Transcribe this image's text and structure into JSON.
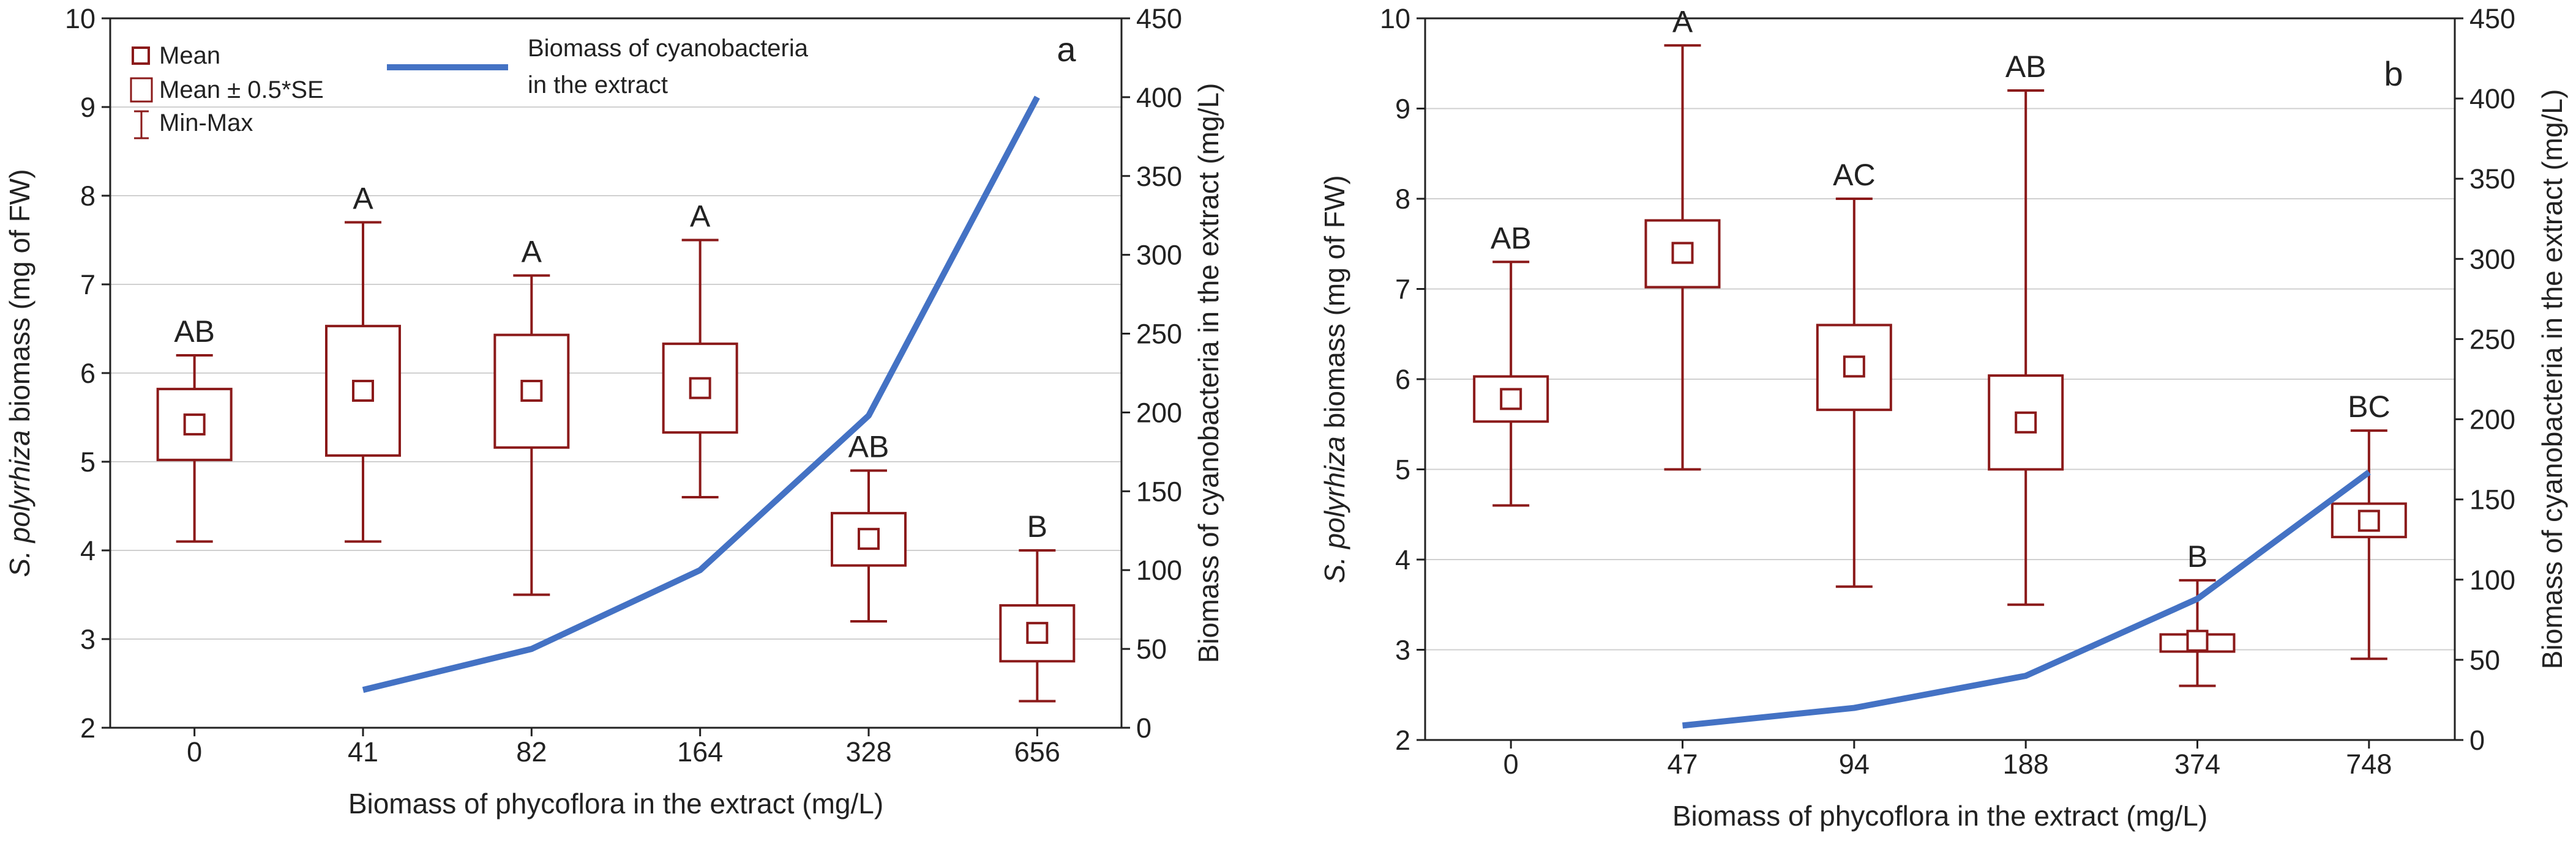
{
  "chart_data": [
    {
      "type": "boxplot",
      "panel_label": "a",
      "categories": [
        "0",
        "41",
        "82",
        "164",
        "328",
        "656"
      ],
      "xlabel": "Biomass of phycoflora in the extract (mg/L)",
      "ylabel_italic": "S. polyrhiza",
      "ylabel_rest": " biomass (mg of FW)",
      "y2label": "Biomass of cyanobacteria in the extract (mg/L)",
      "ylim": [
        2,
        10
      ],
      "yticks": [
        2,
        3,
        4,
        5,
        6,
        7,
        8,
        9,
        10
      ],
      "y2lim": [
        0,
        450
      ],
      "y2ticks": [
        0,
        50,
        100,
        150,
        200,
        250,
        300,
        350,
        400,
        450
      ],
      "mean": [
        5.42,
        5.8,
        5.8,
        5.83,
        4.13,
        3.07
      ],
      "se_low": [
        5.02,
        5.07,
        5.16,
        5.33,
        3.83,
        2.75
      ],
      "se_high": [
        5.82,
        6.53,
        6.43,
        6.33,
        4.42,
        3.38
      ],
      "min": [
        4.1,
        4.1,
        3.5,
        4.6,
        3.2,
        2.3
      ],
      "max": [
        6.2,
        7.7,
        7.1,
        7.5,
        4.9,
        4.0
      ],
      "groups": [
        "AB",
        "A",
        "A",
        "A",
        "AB",
        "B"
      ],
      "cyanobacteria_line": [
        {
          "x": "41",
          "y": 24
        },
        {
          "x": "82",
          "y": 50
        },
        {
          "x": "164",
          "y": 100
        },
        {
          "x": "328",
          "y": 198
        },
        {
          "x": "656",
          "y": 400
        }
      ],
      "legend": {
        "mean": "Mean",
        "se": "Mean ± 0.5*SE",
        "minmax": "Min-Max",
        "line_l1": "Biomass of cyanobacteria",
        "line_l2": "in the extract"
      }
    },
    {
      "type": "boxplot",
      "panel_label": "b",
      "categories": [
        "0",
        "47",
        "94",
        "188",
        "374",
        "748"
      ],
      "xlabel": "Biomass of phycoflora in the extract (mg/L)",
      "ylabel_italic": "S. polyrhiza",
      "ylabel_rest": " biomass (mg of FW)",
      "y2label": "Biomass of cyanobacteria in the extract (mg/L)",
      "ylim": [
        2,
        10
      ],
      "yticks": [
        2,
        3,
        4,
        5,
        6,
        7,
        8,
        9,
        10
      ],
      "y2lim": [
        0,
        450
      ],
      "y2ticks": [
        0,
        50,
        100,
        150,
        200,
        250,
        300,
        350,
        400,
        450
      ],
      "mean": [
        5.78,
        7.4,
        6.14,
        5.52,
        3.1,
        4.43
      ],
      "se_low": [
        5.53,
        7.02,
        5.66,
        5.0,
        2.98,
        4.25
      ],
      "se_high": [
        6.03,
        7.76,
        6.6,
        6.04,
        3.17,
        4.62
      ],
      "min": [
        4.6,
        5.0,
        3.7,
        3.5,
        2.6,
        2.9
      ],
      "max": [
        7.3,
        9.7,
        8.0,
        9.2,
        3.77,
        5.43
      ],
      "groups": [
        "AB",
        "A",
        "AC",
        "AB",
        "B",
        "BC"
      ],
      "cyanobacteria_line": [
        {
          "x": "47",
          "y": 9
        },
        {
          "x": "94",
          "y": 20
        },
        {
          "x": "188",
          "y": 40
        },
        {
          "x": "374",
          "y": 88
        },
        {
          "x": "748",
          "y": 167
        }
      ]
    }
  ],
  "colors": {
    "box": "#8b1a1a",
    "line": "#4472c4",
    "grid": "#d0d0d0",
    "axis": "#222222"
  }
}
